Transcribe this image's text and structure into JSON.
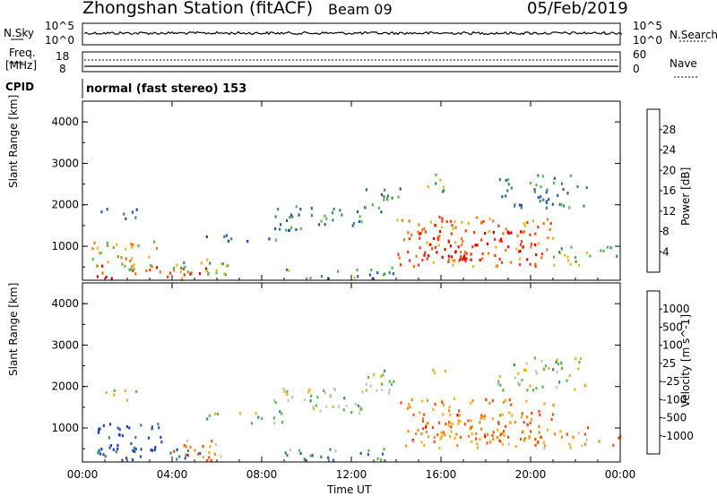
{
  "header": {
    "station": "Zhongshan Station (fitACF)",
    "beam": "Beam 09",
    "date": "05/Feb/2019"
  },
  "status_panels": {
    "nsky_label": "N.Sky",
    "nsearch_label": "N.Search",
    "nsky_ticks": [
      "10^5",
      "10^0"
    ],
    "nsearch_ticks": [
      "10^5",
      "10^0"
    ],
    "freq_label": "Freq.",
    "freq_unit": "[MHz]",
    "freq_ticks": [
      "18",
      "8"
    ],
    "nave_label": "Nave",
    "nave_ticks": [
      "60",
      "0"
    ],
    "cpid_label": "CPID",
    "cpid_value": "normal (fast stereo) 153"
  },
  "colors": {
    "power": [
      "#2040c8",
      "#2c58b0",
      "#3c8a64",
      "#5ab84e",
      "#e8b820",
      "#f07814",
      "#f03c10",
      "#e00000"
    ],
    "velocity": [
      "#2040c8",
      "#2c58b0",
      "#3c8a64",
      "#5ab84e",
      "#c4c4b8",
      "#f0b020",
      "#f08c14",
      "#f05010",
      "#e00000"
    ],
    "ground_scatter": "#808080"
  },
  "chart_data": [
    {
      "type": "heatmap",
      "title": "Power",
      "ylabel": "Slant Range [km]",
      "xlabel": "Time UT",
      "x_ticks": [
        "00:00",
        "04:00",
        "08:00",
        "12:00",
        "16:00",
        "20:00",
        "00:00"
      ],
      "y_ticks": [
        "1000",
        "2000",
        "3000",
        "4000"
      ],
      "ylim": [
        180,
        4500
      ],
      "colorbar_label": "Power [dB]",
      "colorbar_ticks": [
        "28",
        "24",
        "20",
        "16",
        "12",
        "8",
        "4"
      ],
      "scatter_regions": [
        {
          "t": [
            0.3,
            5.6
          ],
          "r": [
            180,
            520
          ],
          "level": 0.85
        },
        {
          "t": [
            0.4,
            3.5
          ],
          "r": [
            420,
            1100
          ],
          "level": 0.55
        },
        {
          "t": [
            0.6,
            2.4
          ],
          "r": [
            1650,
            1900
          ],
          "level": 0.2
        },
        {
          "t": [
            3.8,
            6.5
          ],
          "r": [
            200,
            700
          ],
          "level": 0.45
        },
        {
          "t": [
            5.5,
            9.0
          ],
          "r": [
            1100,
            1350
          ],
          "level": 0.25
        },
        {
          "t": [
            8.5,
            12.5
          ],
          "r": [
            1350,
            1950
          ],
          "level": 0.3
        },
        {
          "t": [
            12.5,
            14.2
          ],
          "r": [
            1800,
            2400
          ],
          "level": 0.35
        },
        {
          "t": [
            14.0,
            21.0
          ],
          "r": [
            500,
            1700
          ],
          "level": 0.7
        },
        {
          "t": [
            15.0,
            20.5
          ],
          "r": [
            650,
            1350
          ],
          "level": 0.92
        },
        {
          "t": [
            15.3,
            16.2
          ],
          "r": [
            2300,
            2750
          ],
          "level": 0.4
        },
        {
          "t": [
            18.5,
            22.5
          ],
          "r": [
            1900,
            2700
          ],
          "level": 0.3
        },
        {
          "t": [
            21.0,
            24.0
          ],
          "r": [
            500,
            1000
          ],
          "level": 0.4
        },
        {
          "t": [
            9.0,
            14.0
          ],
          "r": [
            200,
            480
          ],
          "level": 0.35
        }
      ]
    },
    {
      "type": "heatmap",
      "title": "Velocity",
      "ylabel": "Slant Range [km]",
      "xlabel": "Time UT",
      "x_ticks": [
        "00:00",
        "04:00",
        "08:00",
        "12:00",
        "16:00",
        "20:00",
        "00:00"
      ],
      "y_ticks": [
        "1000",
        "2000",
        "3000",
        "4000"
      ],
      "ylim": [
        180,
        4500
      ],
      "colorbar_label": "Velocity [m s^-1]",
      "colorbar_ticks": [
        "1000",
        "500",
        "100",
        "25",
        "-25",
        "-100",
        "-500",
        "-1000"
      ],
      "scatter_regions": [
        {
          "t": [
            0.3,
            5.6
          ],
          "r": [
            180,
            520
          ],
          "level": 0.15
        },
        {
          "t": [
            0.4,
            3.5
          ],
          "r": [
            420,
            1100
          ],
          "level": 0.1
        },
        {
          "t": [
            0.6,
            2.4
          ],
          "r": [
            1650,
            1900
          ],
          "level": 0.48
        },
        {
          "t": [
            3.8,
            6.5
          ],
          "r": [
            200,
            700
          ],
          "level": 0.7
        },
        {
          "t": [
            5.5,
            9.0
          ],
          "r": [
            1100,
            1350
          ],
          "level": 0.48
        },
        {
          "t": [
            8.5,
            12.5
          ],
          "r": [
            1350,
            1950
          ],
          "level": 0.48
        },
        {
          "t": [
            12.5,
            14.2
          ],
          "r": [
            1800,
            2400
          ],
          "level": 0.48
        },
        {
          "t": [
            14.0,
            21.0
          ],
          "r": [
            500,
            1700
          ],
          "level": 0.72
        },
        {
          "t": [
            15.0,
            20.5
          ],
          "r": [
            650,
            1350
          ],
          "level": 0.75
        },
        {
          "t": [
            15.3,
            16.2
          ],
          "r": [
            2300,
            2750
          ],
          "level": 0.65
        },
        {
          "t": [
            18.5,
            22.5
          ],
          "r": [
            1900,
            2700
          ],
          "level": 0.48
        },
        {
          "t": [
            21.0,
            24.0
          ],
          "r": [
            500,
            1000
          ],
          "level": 0.7
        },
        {
          "t": [
            9.0,
            14.0
          ],
          "r": [
            200,
            480
          ],
          "level": 0.3
        }
      ]
    }
  ]
}
